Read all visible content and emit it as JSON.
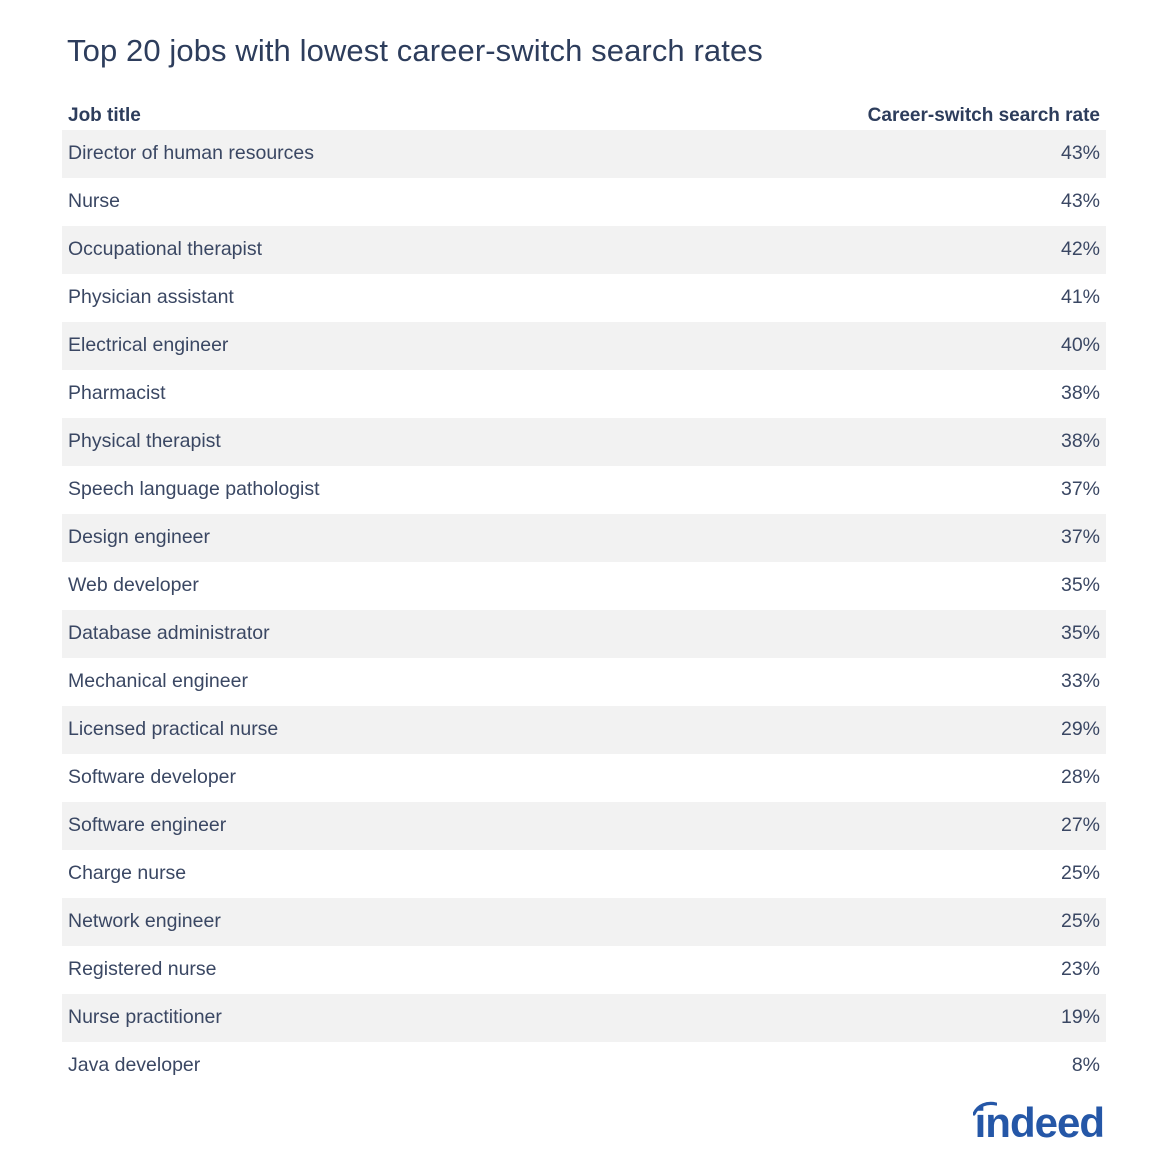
{
  "title": "Top 20 jobs with lowest career-switch search rates",
  "table": {
    "columns": [
      "Job title",
      "Career-switch search rate"
    ],
    "rows": [
      {
        "job": "Director of human resources",
        "rate": "43%"
      },
      {
        "job": "Nurse",
        "rate": "43%"
      },
      {
        "job": "Occupational therapist",
        "rate": "42%"
      },
      {
        "job": "Physician assistant",
        "rate": "41%"
      },
      {
        "job": "Electrical engineer",
        "rate": "40%"
      },
      {
        "job": "Pharmacist",
        "rate": "38%"
      },
      {
        "job": "Physical therapist",
        "rate": "38%"
      },
      {
        "job": "Speech language pathologist",
        "rate": "37%"
      },
      {
        "job": "Design engineer",
        "rate": "37%"
      },
      {
        "job": "Web developer",
        "rate": "35%"
      },
      {
        "job": "Database administrator",
        "rate": "35%"
      },
      {
        "job": "Mechanical engineer",
        "rate": "33%"
      },
      {
        "job": "Licensed practical nurse",
        "rate": "29%"
      },
      {
        "job": "Software developer",
        "rate": "28%"
      },
      {
        "job": "Software engineer",
        "rate": "27%"
      },
      {
        "job": "Charge nurse",
        "rate": "25%"
      },
      {
        "job": "Network engineer",
        "rate": "25%"
      },
      {
        "job": "Registered nurse",
        "rate": "23%"
      },
      {
        "job": "Nurse practitioner",
        "rate": "19%"
      },
      {
        "job": "Java developer",
        "rate": "8%"
      }
    ]
  },
  "logo": {
    "text": "indeed",
    "color": "#2557a7"
  },
  "colors": {
    "text": "#2d3d5c",
    "stripe": "#f2f2f2"
  },
  "chart_data": {
    "type": "table",
    "title": "Top 20 jobs with lowest career-switch search rates",
    "columns": [
      "Job title",
      "Career-switch search rate"
    ],
    "categories": [
      "Director of human resources",
      "Nurse",
      "Occupational therapist",
      "Physician assistant",
      "Electrical engineer",
      "Pharmacist",
      "Physical therapist",
      "Speech language pathologist",
      "Design engineer",
      "Web developer",
      "Database administrator",
      "Mechanical engineer",
      "Licensed practical nurse",
      "Software developer",
      "Software engineer",
      "Charge nurse",
      "Network engineer",
      "Registered nurse",
      "Nurse practitioner",
      "Java developer"
    ],
    "values": [
      43,
      43,
      42,
      41,
      40,
      38,
      38,
      37,
      37,
      35,
      35,
      33,
      29,
      28,
      27,
      25,
      25,
      23,
      19,
      8
    ],
    "unit": "%"
  }
}
